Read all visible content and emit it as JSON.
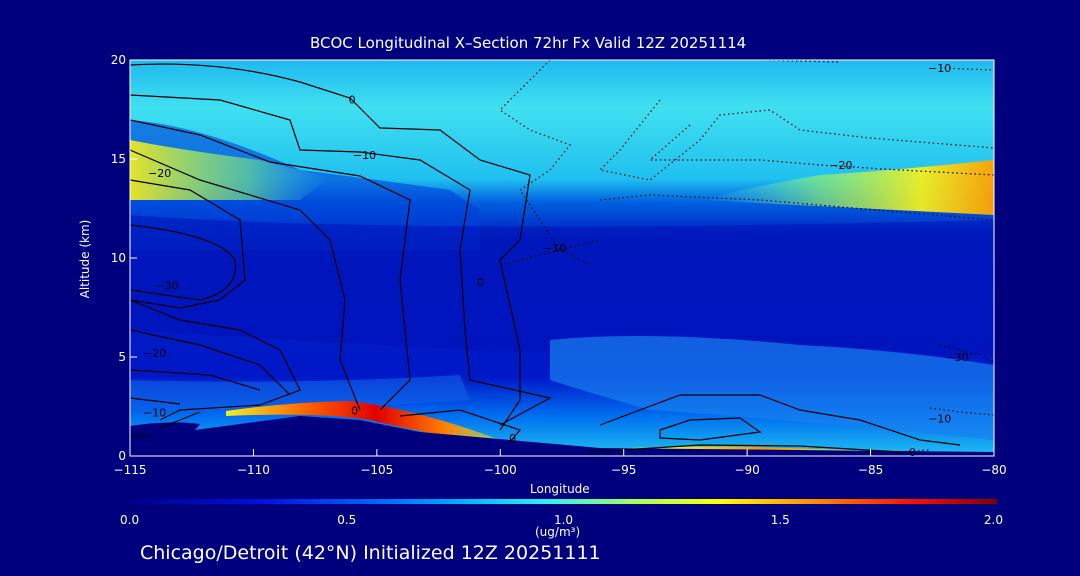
{
  "chart_data": {
    "type": "heatmap",
    "title": "BCOC Longitudinal X–Section 72hr  Fx Valid 12Z 20251114",
    "xlabel": "Longitude",
    "ylabel": "Altitude (km)",
    "xlim": [
      -115,
      -80
    ],
    "ylim": [
      0,
      20
    ],
    "x_ticks": [
      -115,
      -110,
      -105,
      -100,
      -95,
      -90,
      -85,
      -80
    ],
    "x_tick_labels": [
      "−115",
      "−110",
      "−105",
      "−100",
      "−95",
      "−90",
      "−85",
      "−80"
    ],
    "y_ticks": [
      0,
      5,
      10,
      15,
      20
    ],
    "y_tick_labels": [
      "0",
      "5",
      "10",
      "15",
      "20"
    ],
    "colorbar": {
      "min": 0.0,
      "max": 2.0,
      "ticks": [
        0.0,
        0.5,
        1.0,
        1.5,
        2.0
      ],
      "tick_labels": [
        "0.0",
        "0.5",
        "1.0",
        "1.5",
        "2.0"
      ],
      "unit_label": "(ug/m³)"
    },
    "contour_labels": [
      {
        "text": "0",
        "x": -106,
        "y": 18.0
      },
      {
        "text": "−10",
        "x": -105.5,
        "y": 15.2
      },
      {
        "text": "−20",
        "x": -113.8,
        "y": 14.3
      },
      {
        "text": "−30",
        "x": -113.5,
        "y": 8.6
      },
      {
        "text": "−20",
        "x": -114,
        "y": 5.2
      },
      {
        "text": "−10",
        "x": -114,
        "y": 2.2
      },
      {
        "text": "0",
        "x": -105.9,
        "y": 2.3
      },
      {
        "text": "0",
        "x": -100.8,
        "y": 8.8
      },
      {
        "text": "0",
        "x": -99.5,
        "y": 0.9
      },
      {
        "text": "−10",
        "x": -82.2,
        "y": 19.6
      },
      {
        "text": "−20",
        "x": -86.2,
        "y": 14.7
      },
      {
        "text": "−10",
        "x": -97.8,
        "y": 10.5
      },
      {
        "text": "−30",
        "x": -81.5,
        "y": 5.0
      },
      {
        "text": "−10",
        "x": -82.2,
        "y": 1.9
      },
      {
        "text": "0",
        "x": -83.3,
        "y": 0.2
      }
    ],
    "grid": false,
    "legend": "colorbar bottom"
  },
  "footer": "Chicago/Detroit (42°N) Initialized 12Z 20251111"
}
